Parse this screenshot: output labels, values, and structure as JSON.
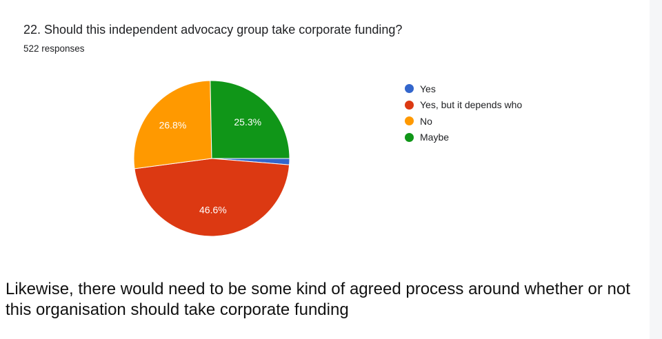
{
  "question": "22. Should this independent advocacy group take corporate funding?",
  "responses_text": "522 responses",
  "chart_data": {
    "type": "pie",
    "categories": [
      "Yes",
      "Yes, but it depends who",
      "No",
      "Maybe"
    ],
    "values": [
      1.3,
      46.6,
      26.8,
      25.3
    ],
    "data_labels": [
      "",
      "46.6%",
      "26.8%",
      "25.3%"
    ],
    "colors": [
      "#3366cc",
      "#dc3912",
      "#ff9900",
      "#109618"
    ],
    "legend_position": "right"
  },
  "caption": "Likewise, there would need to be some kind of agreed process around whether or not this organisation should take corporate funding"
}
